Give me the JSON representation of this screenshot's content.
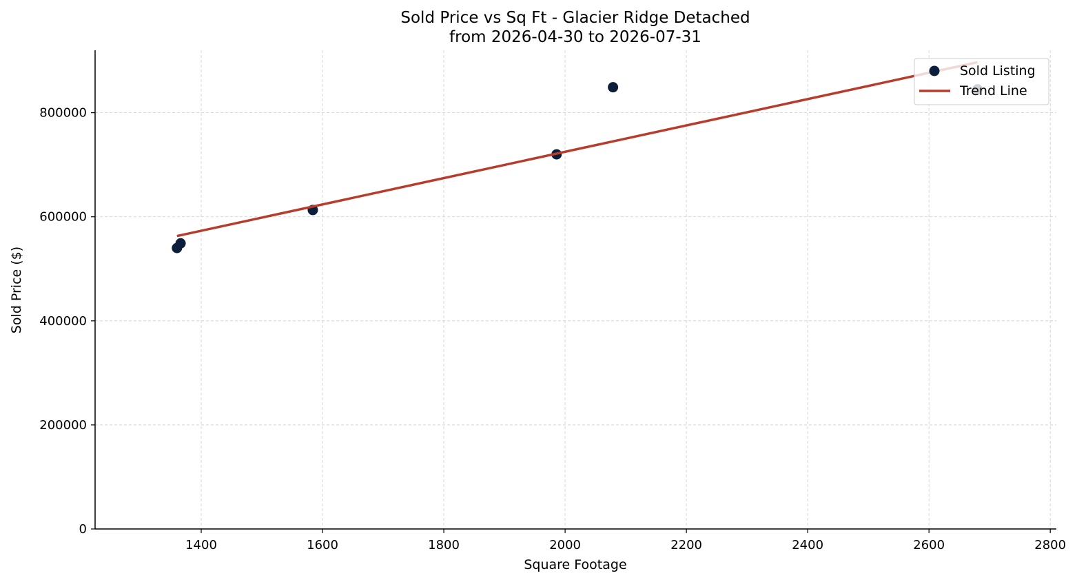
{
  "chart_data": {
    "type": "scatter",
    "title": "Sold Price vs Sq Ft - Glacier Ridge Detached",
    "subtitle": "from 2026-04-30 to 2026-07-31",
    "xlabel": "Square Footage",
    "ylabel": "Sold Price ($)",
    "xlim": [
      1225,
      2810
    ],
    "ylim": [
      0,
      920000
    ],
    "xticks": [
      1400,
      1600,
      1800,
      2000,
      2200,
      2400,
      2600,
      2800
    ],
    "xtick_labels": [
      "1400",
      "1600",
      "1800",
      "2000",
      "2200",
      "2400",
      "2600",
      "2800"
    ],
    "yticks": [
      0,
      200000,
      400000,
      600000,
      800000
    ],
    "ytick_labels": [
      "0",
      "200000",
      "400000",
      "600000",
      "800000"
    ],
    "grid": true,
    "legend_position": "top-right",
    "series": [
      {
        "name": "Sold Listing",
        "kind": "scatter",
        "color": "#0b1f3a",
        "points": [
          {
            "x": 1360,
            "y": 540000
          },
          {
            "x": 1366,
            "y": 549000
          },
          {
            "x": 1584,
            "y": 613000
          },
          {
            "x": 1986,
            "y": 720000
          },
          {
            "x": 2079,
            "y": 849000
          },
          {
            "x": 2680,
            "y": 845000
          }
        ]
      },
      {
        "name": "Trend Line",
        "kind": "line",
        "color": "#b83c2c",
        "points": [
          {
            "x": 1360,
            "y": 563000
          },
          {
            "x": 2680,
            "y": 897000
          }
        ]
      }
    ]
  }
}
